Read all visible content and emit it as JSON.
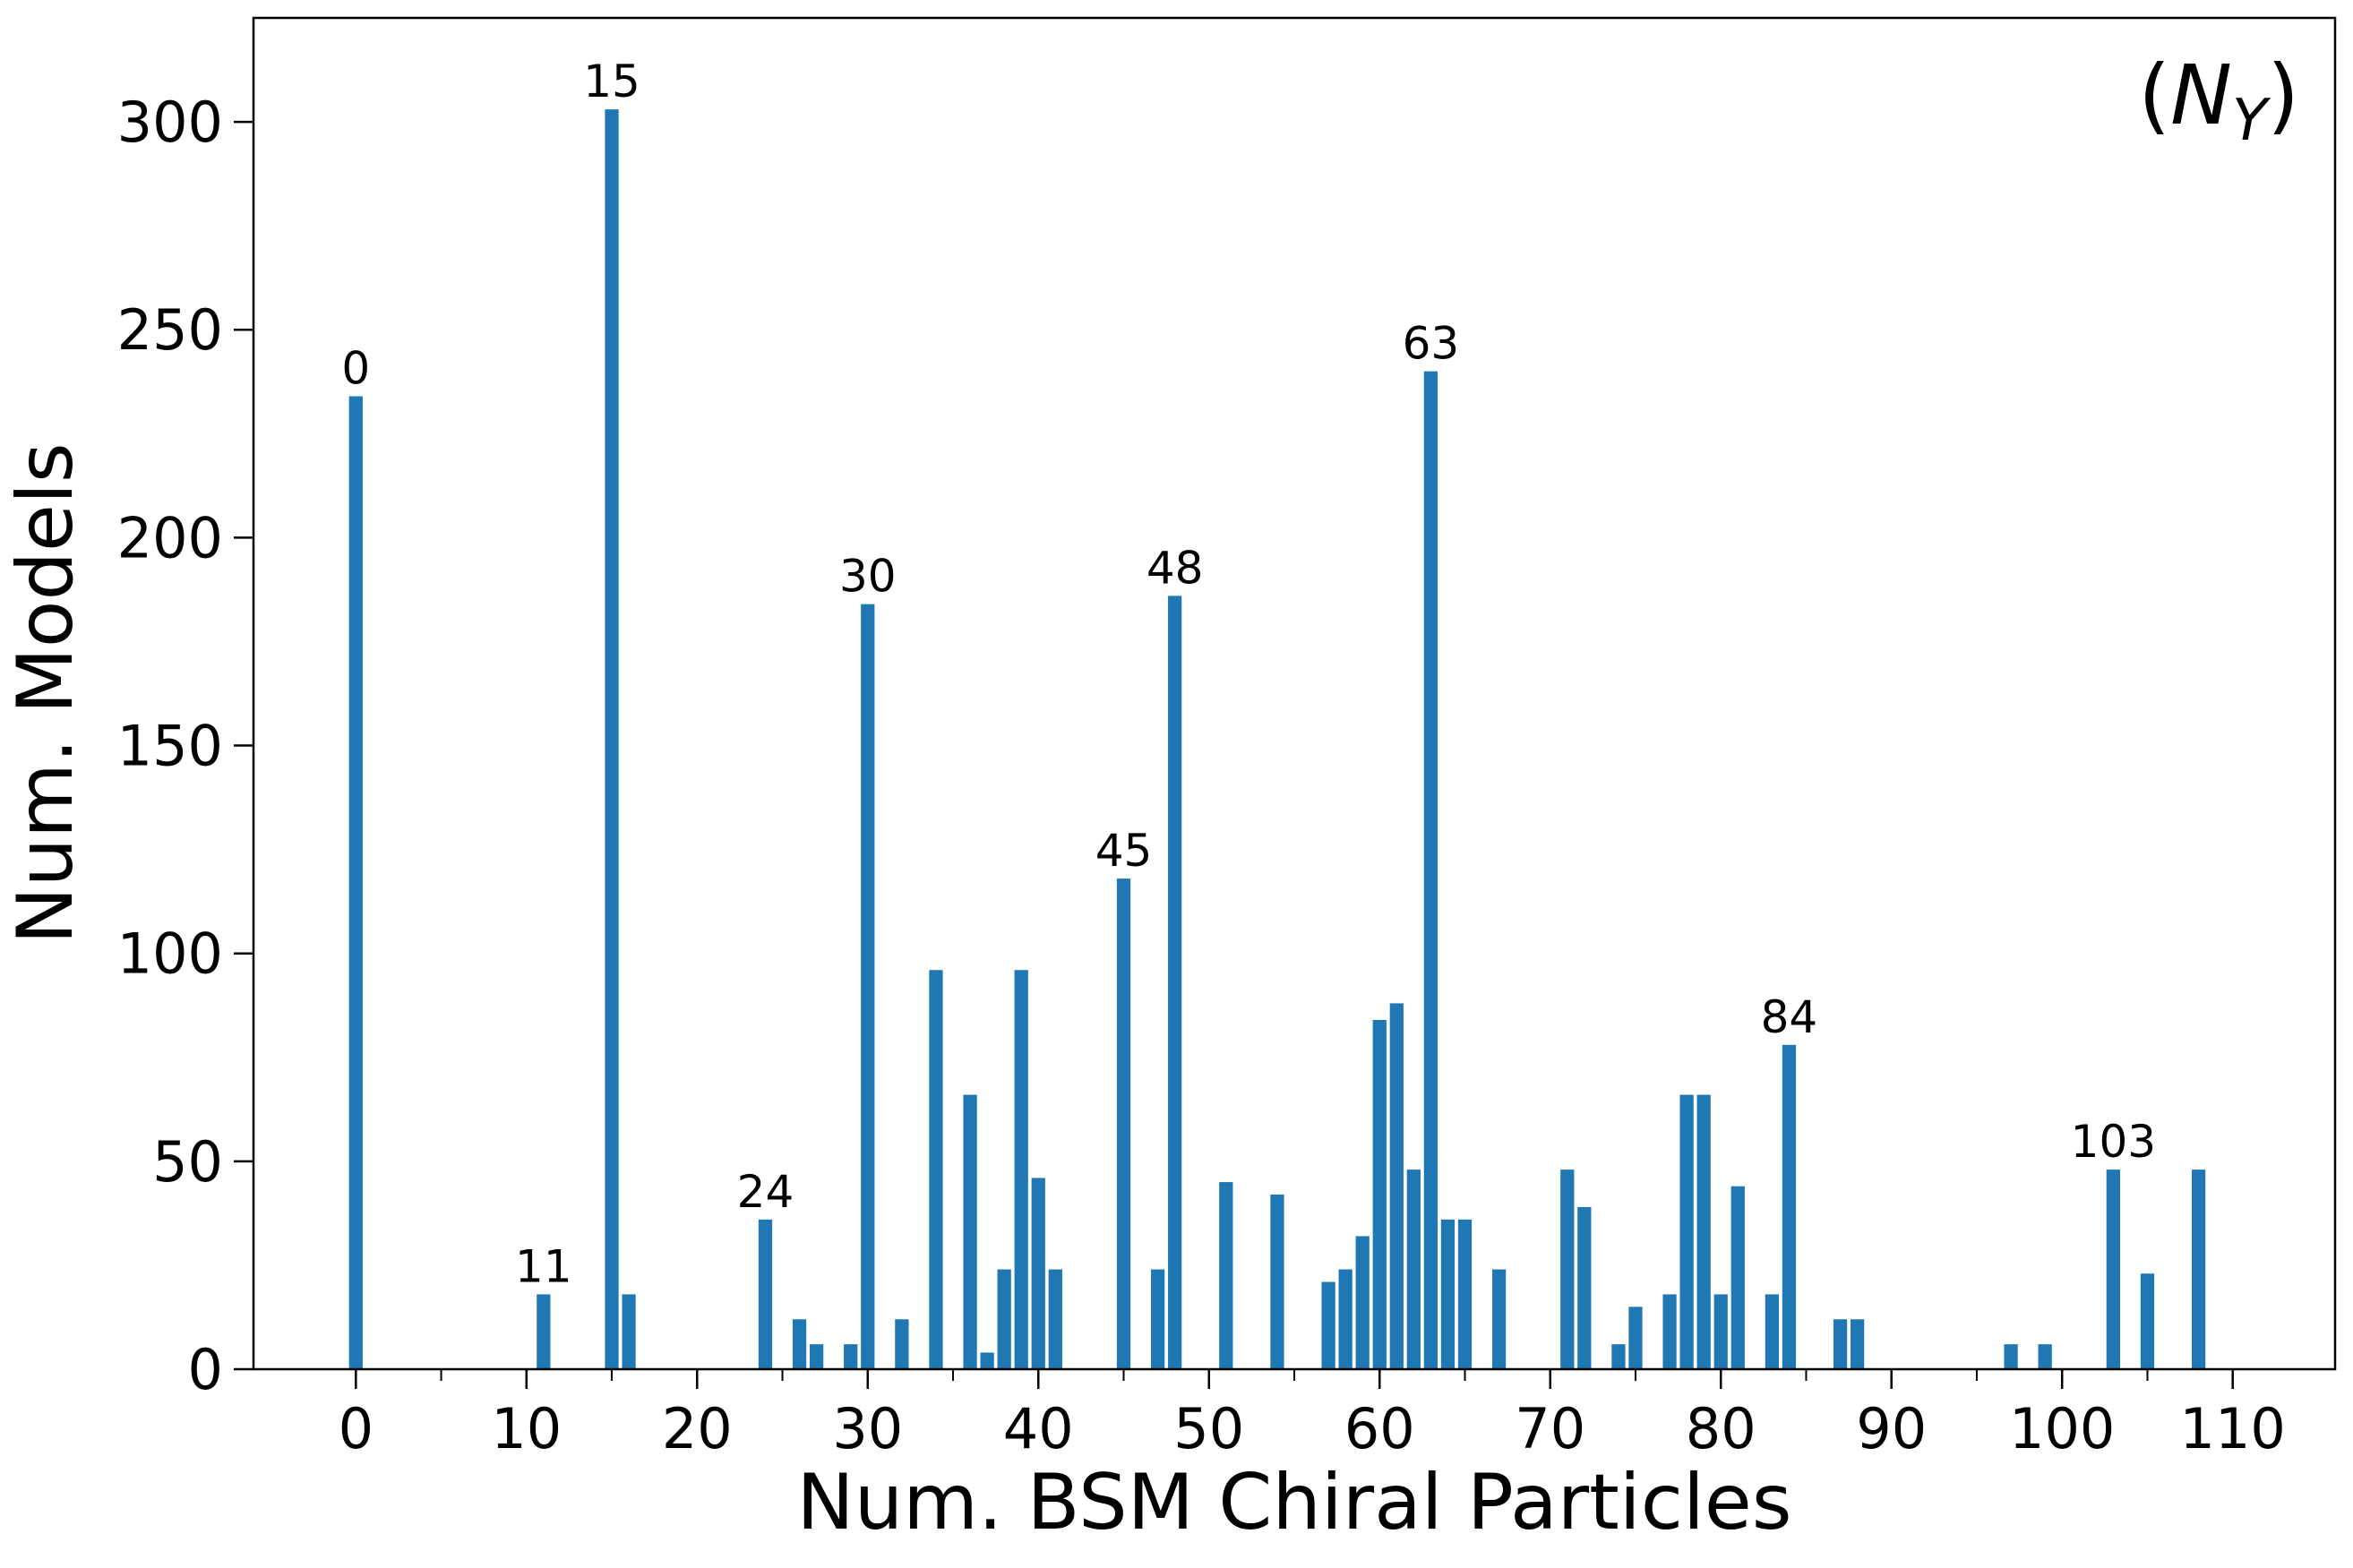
{
  "chart_data": {
    "type": "bar",
    "panel_tag": {
      "open": "(",
      "symbol": "N",
      "subscript": "Y",
      "close": ")"
    },
    "xlabel": "Num. BSM Chiral Particles",
    "ylabel": "Num. Models",
    "xlim": [
      -6,
      116
    ],
    "ylim": [
      0,
      325
    ],
    "x_major_ticks": [
      0,
      10,
      20,
      30,
      40,
      50,
      60,
      70,
      80,
      90,
      100,
      110
    ],
    "x_minor_ticks": [
      5,
      15,
      25,
      35,
      45,
      55,
      65,
      75,
      85,
      95,
      105
    ],
    "y_ticks": [
      0,
      50,
      100,
      150,
      200,
      250,
      300
    ],
    "grid": false,
    "bar_color": "#1f77b4",
    "x": [
      0,
      11,
      15,
      16,
      24,
      26,
      27,
      29,
      30,
      32,
      34,
      36,
      37,
      38,
      39,
      40,
      41,
      45,
      47,
      48,
      51,
      54,
      57,
      58,
      59,
      60,
      61,
      62,
      63,
      64,
      65,
      67,
      71,
      72,
      74,
      75,
      77,
      78,
      79,
      80,
      81,
      83,
      84,
      87,
      88,
      97,
      99,
      103,
      105,
      108
    ],
    "values": [
      234,
      18,
      303,
      18,
      36,
      12,
      6,
      6,
      184,
      12,
      96,
      66,
      4,
      24,
      96,
      46,
      24,
      118,
      24,
      186,
      45,
      42,
      21,
      24,
      32,
      84,
      88,
      48,
      240,
      36,
      36,
      24,
      48,
      39,
      6,
      15,
      18,
      66,
      66,
      18,
      44,
      18,
      78,
      12,
      12,
      6,
      6,
      48,
      23,
      48
    ],
    "annotations": [
      {
        "x": 0,
        "text": "0"
      },
      {
        "x": 11,
        "text": "11"
      },
      {
        "x": 15,
        "text": "15"
      },
      {
        "x": 24,
        "text": "24"
      },
      {
        "x": 30,
        "text": "30"
      },
      {
        "x": 45,
        "text": "45"
      },
      {
        "x": 48,
        "text": "48"
      },
      {
        "x": 63,
        "text": "63"
      },
      {
        "x": 84,
        "text": "84"
      },
      {
        "x": 103,
        "text": "103"
      }
    ]
  }
}
